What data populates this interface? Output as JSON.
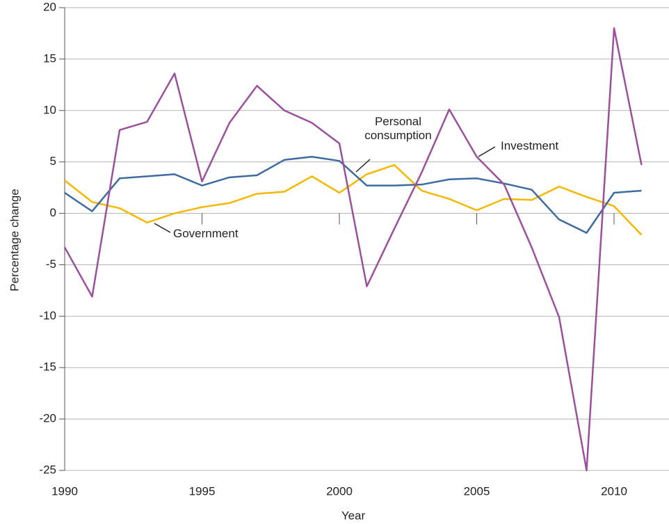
{
  "chart_data": {
    "type": "line",
    "x_label": "Year",
    "y_label": "Percentage change",
    "x": [
      1990,
      1991,
      1992,
      1993,
      1994,
      1995,
      1996,
      1997,
      1998,
      1999,
      2000,
      2001,
      2002,
      2003,
      2004,
      2005,
      2006,
      2007,
      2008,
      2009,
      2010,
      2011
    ],
    "series": [
      {
        "name": "Investment",
        "color": "#9b4f9e",
        "values": [
          -3.3,
          -8.1,
          8.1,
          8.9,
          13.6,
          3.1,
          8.8,
          12.4,
          10.0,
          8.8,
          6.8,
          -7.1,
          -1.5,
          4.0,
          10.1,
          5.5,
          2.8,
          -3.3,
          -10.1,
          -25,
          18,
          4.7
        ]
      },
      {
        "name": "Personal consumption",
        "color": "#3d6aa0",
        "values": [
          2.0,
          0.2,
          3.4,
          3.6,
          3.8,
          2.7,
          3.5,
          3.7,
          5.2,
          5.5,
          5.1,
          2.7,
          2.7,
          2.8,
          3.3,
          3.4,
          2.9,
          2.3,
          -0.6,
          -1.9,
          2.0,
          2.2
        ]
      },
      {
        "name": "Government",
        "color": "#f5b800",
        "values": [
          3.2,
          1.1,
          0.5,
          -0.9,
          0.0,
          0.6,
          1.0,
          1.9,
          2.1,
          3.6,
          2.0,
          3.8,
          4.7,
          2.2,
          1.4,
          0.3,
          1.4,
          1.3,
          2.6,
          1.6,
          0.7,
          -2.1
        ]
      }
    ],
    "xlim": [
      1990,
      2012
    ],
    "xticks": [
      1990,
      1995,
      2000,
      2005,
      2010
    ],
    "ylim": [
      -25,
      20
    ],
    "yticks": [
      -25,
      -20,
      -15,
      -10,
      -5,
      0,
      5,
      10,
      15,
      20
    ],
    "grid": true
  }
}
